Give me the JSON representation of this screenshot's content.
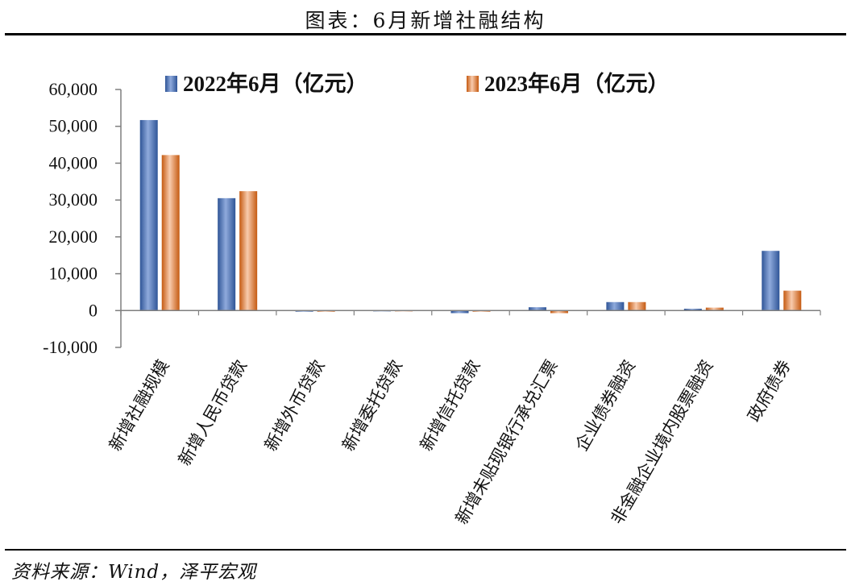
{
  "figure": {
    "title": "图表：6月新增社融结构",
    "source": "资料来源：Wind，泽平宏观"
  },
  "chart_data": {
    "type": "bar",
    "categories": [
      "新增社融规模",
      "新增人民币贷款",
      "新增外币贷款",
      "新增委托贷款",
      "新增信托贷款",
      "新增未贴现银行承兑汇票",
      "企业债券融资",
      "非金融企业境内股票融资",
      "政府债券"
    ],
    "series": [
      {
        "name": "2022年6月（亿元）",
        "color": "#4472C4",
        "values": [
          51700,
          30500,
          -300,
          -200,
          -700,
          900,
          2300,
          500,
          16200
        ]
      },
      {
        "name": "2023年6月（亿元）",
        "color": "#ED7D31",
        "values": [
          42200,
          32400,
          -300,
          -200,
          -300,
          -700,
          2300,
          800,
          5400
        ]
      }
    ],
    "ylim": [
      -10000,
      60000
    ],
    "yticks": [
      "-10,000",
      "0",
      "10,000",
      "20,000",
      "30,000",
      "40,000",
      "50,000",
      "60,000"
    ],
    "ytick_values": [
      -10000,
      0,
      10000,
      20000,
      30000,
      40000,
      50000,
      60000
    ],
    "legend_position": "top",
    "grid": false
  }
}
